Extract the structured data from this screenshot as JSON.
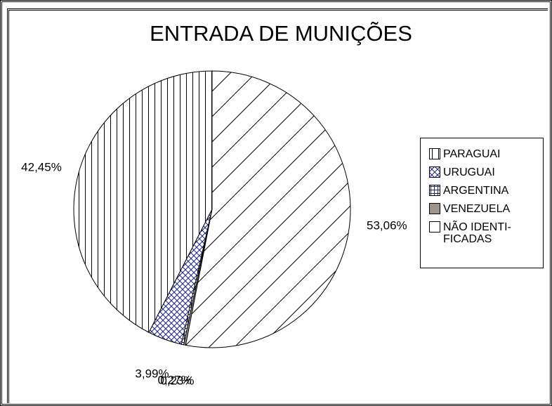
{
  "chart_data": {
    "type": "pie",
    "title": "ENTRADA DE MUNIÇÕES",
    "categories": [
      "PARAGUAI",
      "URUGUAI",
      "ARGENTINA",
      "VENEZUELA",
      "NÃO IDENTI-\nFICADAS"
    ],
    "values": [
      42.45,
      3.99,
      0.27,
      0.23,
      53.06
    ],
    "value_labels": [
      "42,45%",
      "3,99%",
      "0,27%",
      "0,23%",
      "53,06%"
    ],
    "colors": [
      "#000000",
      "#000000",
      "#1a237e",
      "#9e948c",
      "#000000"
    ],
    "fills": [
      "vertical",
      "crosshatch",
      "grid",
      "solid",
      "diagonal"
    ],
    "direction": "counterclockwise"
  }
}
